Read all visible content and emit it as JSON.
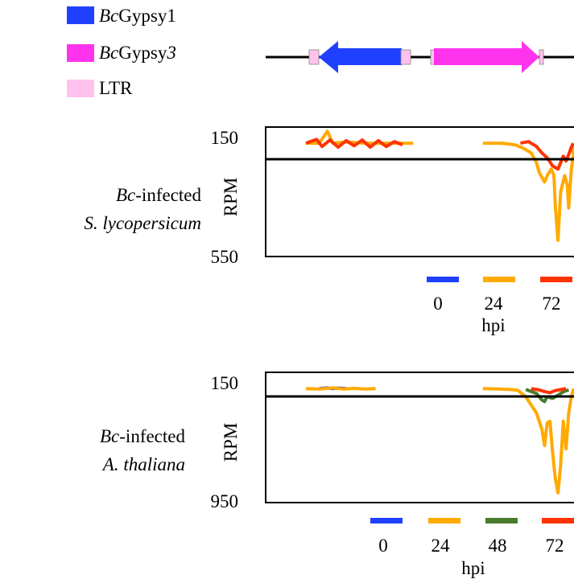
{
  "legend": {
    "items": [
      {
        "prefix": "Bc",
        "suffix": "Gypsy1",
        "suffix_italic": "",
        "color": "#2040ff",
        "icon": "blue-swatch"
      },
      {
        "prefix": "Bc",
        "suffix": "Gypsy",
        "suffix_italic": "3",
        "color": "#ff33ee",
        "icon": "magenta-swatch"
      },
      {
        "prefix": "",
        "suffix": "LTR",
        "suffix_italic": "",
        "color": "#ffc2ec",
        "icon": "pink-swatch"
      }
    ]
  },
  "gene_model": {
    "line_color": "#000000",
    "ltr_color": "#ffc2ec",
    "elements": [
      {
        "name": "BcGypsy1",
        "direction": "left",
        "color": "#2040ff"
      },
      {
        "name": "BcGypsy3",
        "direction": "right",
        "color": "#ff33ee"
      }
    ]
  },
  "chart_data": [
    {
      "type": "area",
      "title": "",
      "sample_prefix": "Bc",
      "sample_suffix": "-infected",
      "species": "S. lycopersicum",
      "ylabel": "RPM",
      "ytick_top": "150",
      "ytick_bottom": "550",
      "ylim": [
        150,
        550
      ],
      "ref_line": 200,
      "xlabel": "hpi",
      "series": [
        {
          "name": "0",
          "color": "#2040ff",
          "segments": [
            []
          ]
        },
        {
          "name": "24",
          "color": "#ffaa00",
          "segments": [
            [
              [
                0.0,
                200
              ],
              [
                0.05,
                200
              ],
              [
                0.08,
                163
              ],
              [
                0.1,
                200
              ],
              [
                0.15,
                196
              ],
              [
                0.22,
                200
              ],
              [
                0.3,
                200
              ],
              [
                0.35,
                200
              ],
              [
                0.4,
                200
              ]
            ],
            [
              [
                0.66,
                200
              ],
              [
                0.7,
                200
              ],
              [
                0.73,
                200
              ],
              [
                0.75,
                202
              ],
              [
                0.78,
                205
              ],
              [
                0.81,
                215
              ],
              [
                0.84,
                230
              ],
              [
                0.86,
                260
              ],
              [
                0.87,
                290
              ],
              [
                0.89,
                320
              ],
              [
                0.9,
                300
              ],
              [
                0.915,
                280
              ],
              [
                0.925,
                300
              ],
              [
                0.93,
                390
              ],
              [
                0.94,
                500
              ],
              [
                0.95,
                350
              ],
              [
                0.965,
                300
              ],
              [
                0.975,
                330
              ],
              [
                0.98,
                400
              ],
              [
                0.99,
                280
              ],
              [
                1.0,
                240
              ],
              [
                1.01,
                210
              ],
              [
                1.03,
                200
              ],
              [
                1.08,
                200
              ],
              [
                1.1,
                200
              ]
            ]
          ]
        },
        {
          "name": "72",
          "color": "#ff3300",
          "segments": [
            [
              [
                0.0,
                200
              ],
              [
                0.04,
                188
              ],
              [
                0.06,
                210
              ],
              [
                0.09,
                190
              ],
              [
                0.12,
                212
              ],
              [
                0.15,
                192
              ],
              [
                0.18,
                208
              ],
              [
                0.21,
                190
              ],
              [
                0.24,
                212
              ],
              [
                0.27,
                192
              ],
              [
                0.3,
                210
              ],
              [
                0.33,
                195
              ],
              [
                0.36,
                205
              ]
            ],
            [
              [
                0.8,
                200
              ],
              [
                0.83,
                195
              ],
              [
                0.86,
                210
              ],
              [
                0.88,
                230
              ],
              [
                0.9,
                245
              ],
              [
                0.92,
                270
              ],
              [
                0.94,
                280
              ],
              [
                0.95,
                260
              ],
              [
                0.96,
                240
              ],
              [
                0.97,
                255
              ],
              [
                0.98,
                235
              ],
              [
                0.99,
                212
              ],
              [
                1.0,
                200
              ]
            ]
          ]
        }
      ]
    },
    {
      "type": "area",
      "title": "",
      "sample_prefix": "Bc",
      "sample_suffix": "-infected",
      "species": "A. thaliana",
      "ylabel": "RPM",
      "ytick_top": "150",
      "ytick_bottom": "950",
      "ylim": [
        150,
        950
      ],
      "ref_line": 250,
      "xlabel": "hpi",
      "series": [
        {
          "name": "0",
          "color": "#2040ff",
          "segments": [
            [
              [
                0.05,
                250
              ],
              [
                0.08,
                246
              ],
              [
                0.1,
                250
              ],
              [
                0.12,
                247
              ],
              [
                0.15,
                250
              ]
            ]
          ]
        },
        {
          "name": "24",
          "color": "#ffaa00",
          "segments": [
            [
              [
                0.0,
                250
              ],
              [
                0.05,
                252
              ],
              [
                0.1,
                246
              ],
              [
                0.14,
                252
              ],
              [
                0.18,
                249
              ],
              [
                0.22,
                252
              ],
              [
                0.26,
                250
              ]
            ],
            [
              [
                0.66,
                250
              ],
              [
                0.72,
                252
              ],
              [
                0.76,
                255
              ],
              [
                0.79,
                260
              ],
              [
                0.82,
                300
              ],
              [
                0.84,
                350
              ],
              [
                0.86,
                400
              ],
              [
                0.88,
                500
              ],
              [
                0.89,
                600
              ],
              [
                0.9,
                460
              ],
              [
                0.91,
                450
              ],
              [
                0.92,
                640
              ],
              [
                0.93,
                800
              ],
              [
                0.94,
                890
              ],
              [
                0.95,
                720
              ],
              [
                0.96,
                450
              ],
              [
                0.97,
                620
              ],
              [
                0.98,
                400
              ],
              [
                0.99,
                300
              ],
              [
                1.01,
                260
              ],
              [
                1.04,
                252
              ],
              [
                1.08,
                250
              ]
            ]
          ]
        },
        {
          "name": "48",
          "color": "#4a7b2e",
          "segments": [
            [
              [
                0.82,
                255
              ],
              [
                0.84,
                268
              ],
              [
                0.86,
                280
              ],
              [
                0.88,
                320
              ],
              [
                0.89,
                330
              ],
              [
                0.9,
                300
              ],
              [
                0.92,
                310
              ],
              [
                0.94,
                290
              ],
              [
                0.96,
                270
              ],
              [
                0.98,
                258
              ]
            ]
          ]
        },
        {
          "name": "72",
          "color": "#ff3300",
          "segments": [
            [
              [
                0.84,
                250
              ],
              [
                0.87,
                258
              ],
              [
                0.89,
                268
              ],
              [
                0.91,
                275
              ],
              [
                0.93,
                262
              ],
              [
                0.95,
                256
              ],
              [
                0.97,
                250
              ]
            ]
          ]
        }
      ]
    }
  ]
}
